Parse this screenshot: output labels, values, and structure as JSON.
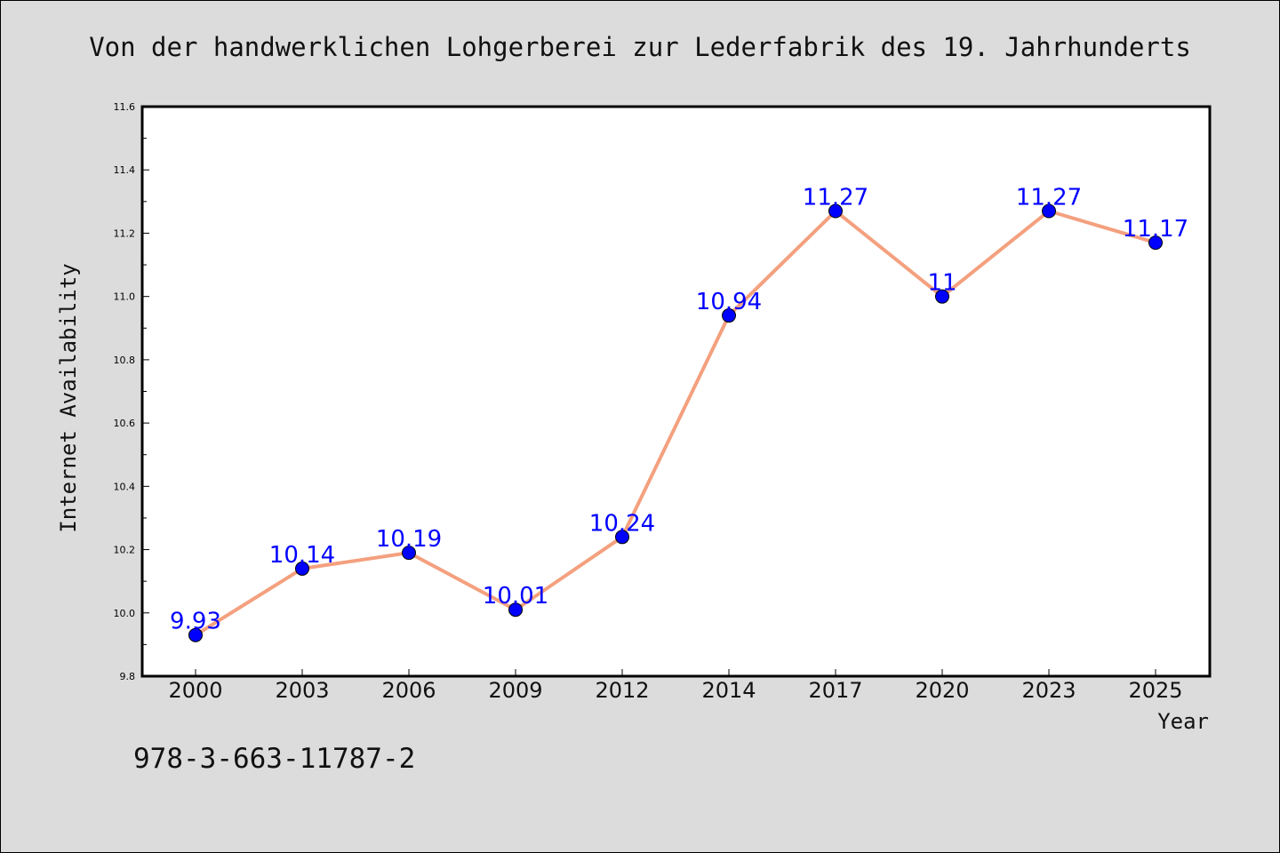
{
  "chart_data": {
    "type": "line",
    "title": "Von der handwerklichen Lohgerberei zur Lederfabrik des 19. Jahrhunderts",
    "xlabel": "Year",
    "ylabel": "Internet Availability",
    "categories": [
      "2000",
      "2003",
      "2006",
      "2009",
      "2012",
      "2014",
      "2017",
      "2020",
      "2023",
      "2025"
    ],
    "series": [
      {
        "values": [
          9.93,
          10.14,
          10.19,
          10.01,
          10.24,
          10.94,
          11.27,
          11.0,
          11.27,
          11.17
        ],
        "labels": [
          "9.93",
          "10.14",
          "10.19",
          "10.01",
          "10.24",
          "10.94",
          "11.27",
          "11",
          "11.27",
          "11.17"
        ]
      }
    ],
    "ylim": [
      9.8,
      11.6
    ],
    "yticks": [
      "9.8",
      "10.0",
      "10.2",
      "10.4",
      "10.6",
      "10.8",
      "11.0",
      "11.2",
      "11.4",
      "11.6"
    ],
    "grid": false,
    "line_color": "#f4a07e",
    "marker_color": "#0000ff",
    "label_color": "#0000ff"
  },
  "footer": {
    "isbn": "978-3-663-11787-2"
  }
}
